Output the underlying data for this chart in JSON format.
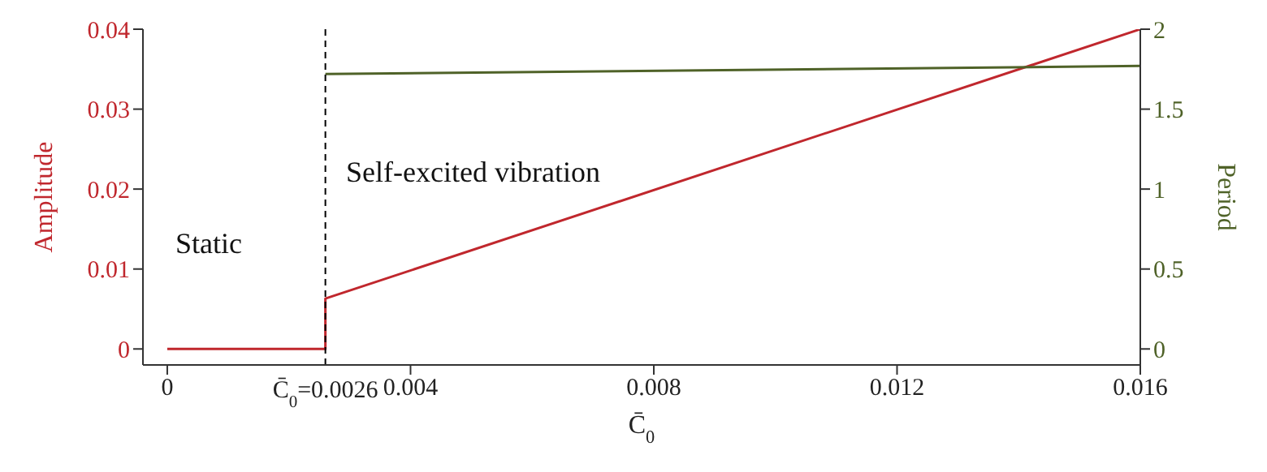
{
  "chart_data": {
    "type": "line",
    "xlabel": "C̄$_{0}$",
    "ylabel": "Amplitude",
    "y2label": "Period",
    "series": [
      {
        "color": "#c0272d",
        "x": [
          0,
          0.0026,
          0.0026,
          0.016
        ],
        "values": [
          0,
          0,
          0.0063,
          0.04
        ]
      },
      {
        "color": "#4f6228",
        "axis": "y2",
        "x": [
          0.0026,
          0.016
        ],
        "values": [
          1.72,
          1.77
        ]
      }
    ],
    "xlim": [
      -0.0004,
      0.016
    ],
    "xticks": [
      0,
      0.004,
      0.008,
      0.012,
      0.016
    ],
    "ylim": [
      -0.002,
      0.04
    ],
    "yticks": [
      0,
      0.01,
      0.02,
      0.03,
      0.04
    ],
    "y2lim": [
      -0.1,
      2
    ],
    "y2ticks": [
      0,
      0.5,
      1,
      1.5,
      2
    ],
    "ref_lines": [
      {
        "axis": "x",
        "value": 0.0026,
        "label": "C̄$_{0}$=0.0026",
        "color": "#000000",
        "line_style": "dashed"
      }
    ],
    "annotations": [
      "Static",
      "Self-excited vibration"
    ],
    "marker": "none",
    "line_style": "solid"
  }
}
